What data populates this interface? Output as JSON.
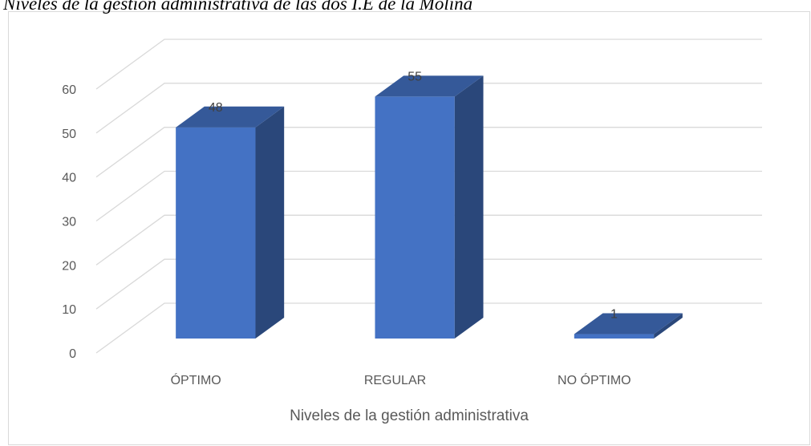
{
  "chart_data": {
    "type": "bar3d",
    "title": "Niveles de la gestión administrativa de las dos I.E de la Molina",
    "x_label": "Niveles de la gestión administrativa",
    "categories": [
      "ÓPTIMO",
      "REGULAR",
      "NO ÓPTIMO"
    ],
    "values": [
      48,
      55,
      1
    ],
    "color": "#4472c4",
    "ylim": [
      0,
      60
    ],
    "yticks": [
      0,
      10,
      20,
      30,
      40,
      50,
      60
    ],
    "grid": true
  }
}
